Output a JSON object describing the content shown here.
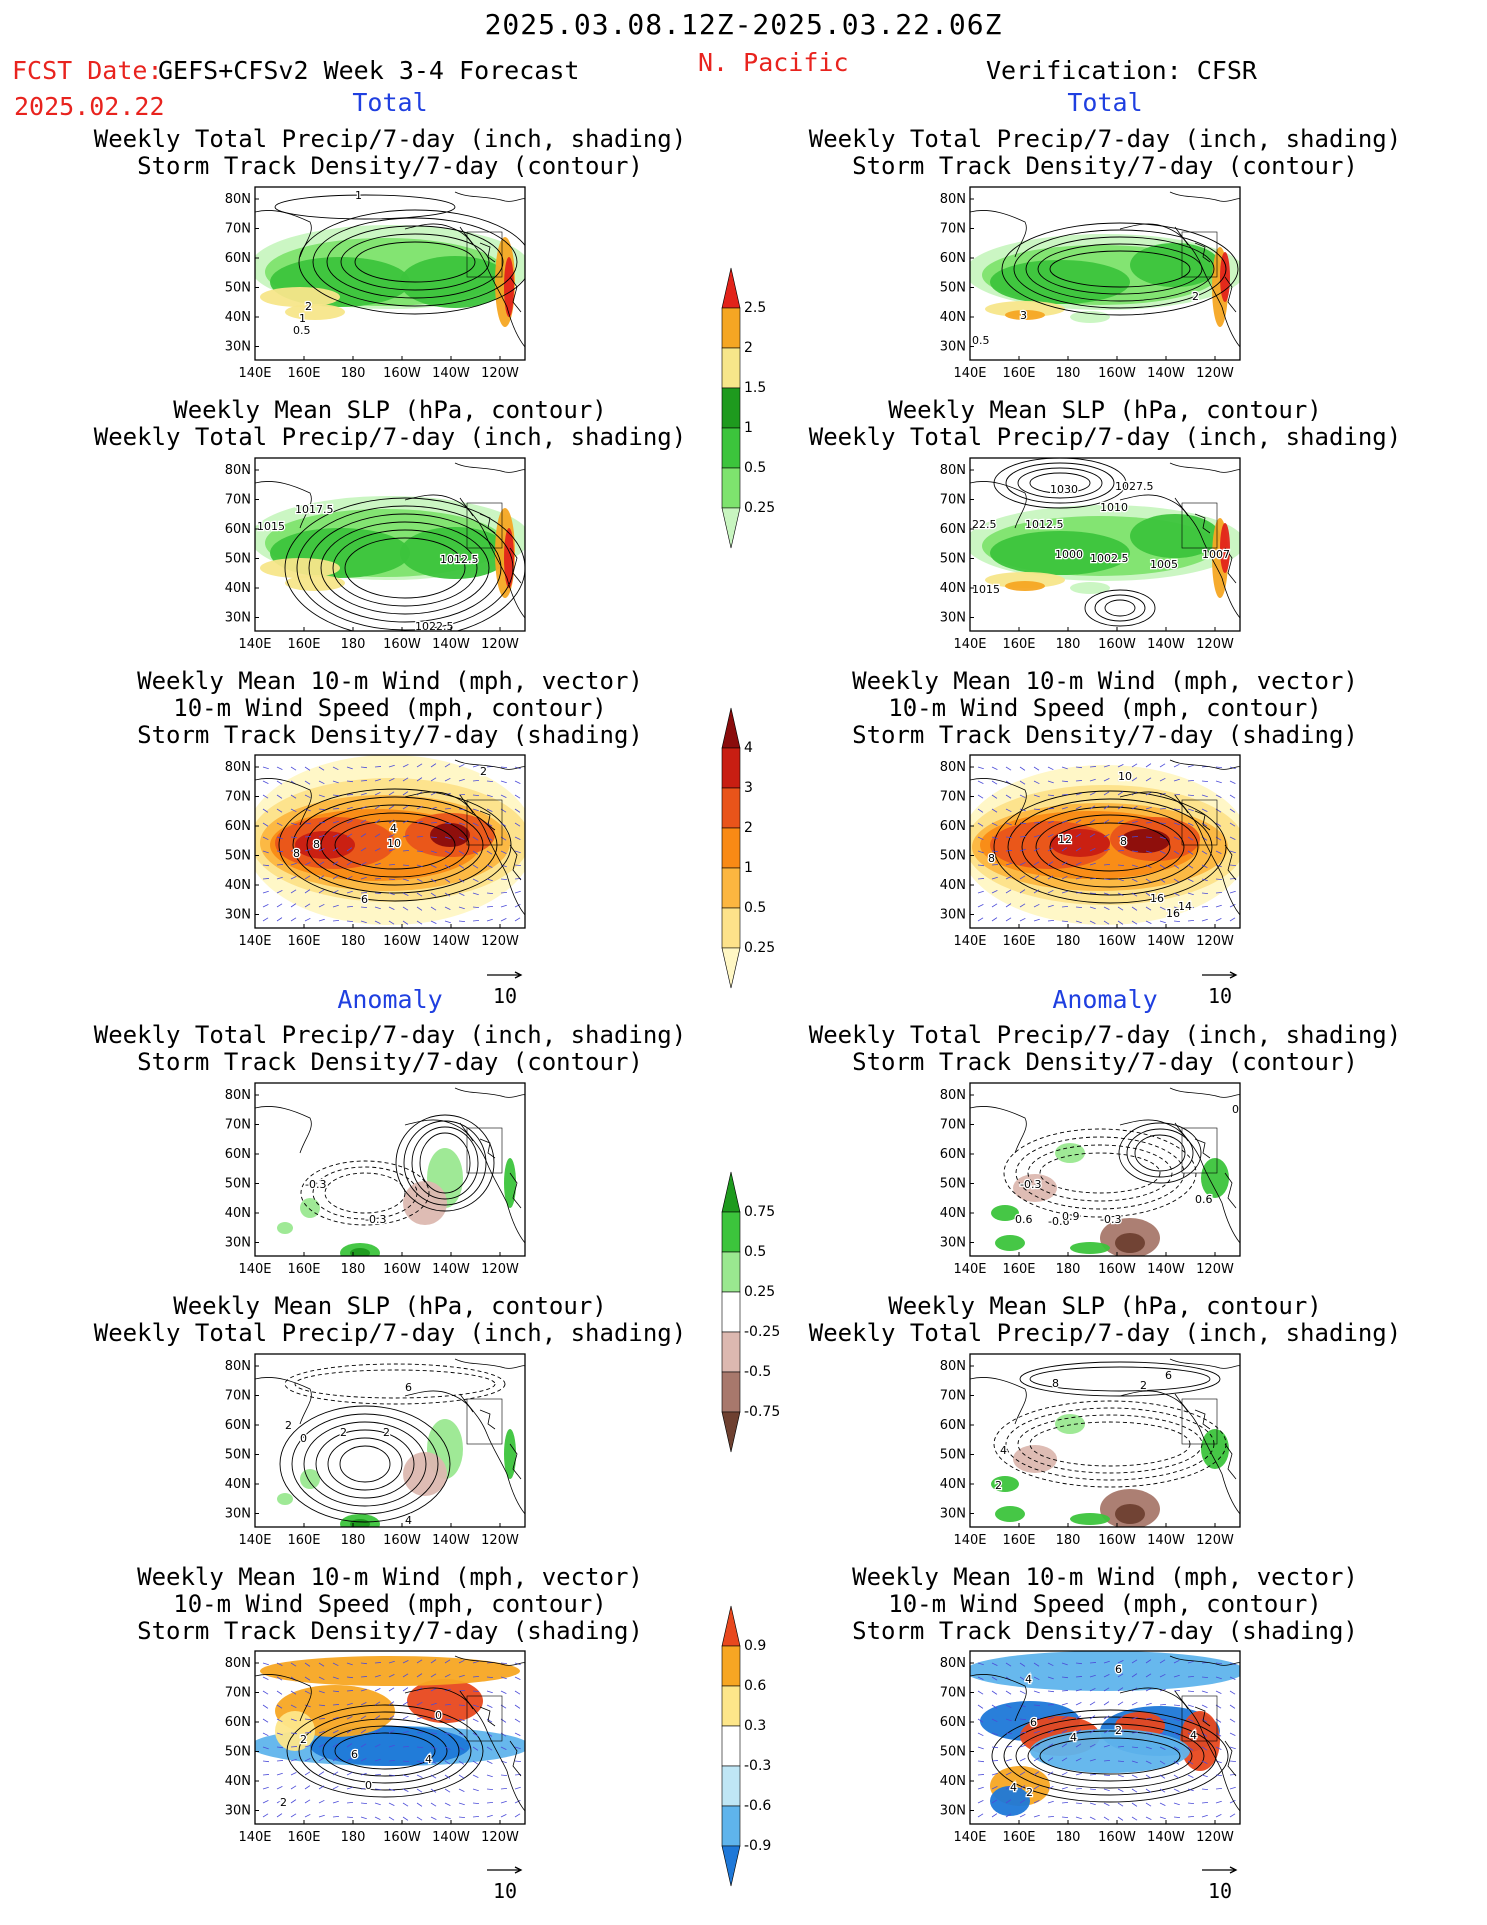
{
  "header": {
    "date_range": "2025.03.08.12Z-2025.03.22.06Z",
    "fcst_label": "FCST Date:",
    "forecast_product": "GEFS+CFSv2 Week 3-4 Forecast",
    "fcst_date": "2025.02.22",
    "region": "N. Pacific",
    "verification": "Verification: CFSR"
  },
  "sections": {
    "total": "Total",
    "anomaly": "Anomaly"
  },
  "titles": {
    "precip_storm": [
      "Weekly Total Precip/7-day (inch, shading)",
      "Storm Track Density/7-day (contour)"
    ],
    "slp_precip": [
      "Weekly Mean SLP (hPa, contour)",
      "Weekly Total Precip/7-day (inch, shading)"
    ],
    "wind_storm": [
      "Weekly Mean 10-m Wind (mph, vector)",
      "10-m Wind Speed (mph, contour)",
      "Storm Track Density/7-day (shading)"
    ]
  },
  "axes": {
    "lat_labels": [
      "80N",
      "70N",
      "60N",
      "50N",
      "40N",
      "30N"
    ],
    "lon_labels": [
      "140E",
      "160E",
      "180",
      "160W",
      "140W",
      "120W"
    ]
  },
  "vector_reference": "10",
  "colorbars": {
    "precip_total": {
      "levels": [
        "0.25",
        "0.5",
        "1",
        "1.5",
        "2",
        "2.5"
      ],
      "colors": [
        "#c8f5c0",
        "#7ee36e",
        "#3cc43c",
        "#1e9a1e",
        "#f7e68a",
        "#f5a623",
        "#e2231a"
      ]
    },
    "storm_total": {
      "levels": [
        "0.25",
        "0.5",
        "1",
        "2",
        "3",
        "4"
      ],
      "colors": [
        "#fff7c4",
        "#fde28a",
        "#fcb640",
        "#f98a15",
        "#e9541a",
        "#c81e12",
        "#8a0c0c"
      ]
    },
    "precip_anom": {
      "levels": [
        "0.75",
        "0.5",
        "0.25",
        "-0.25",
        "-0.5",
        "-0.75"
      ],
      "colors": [
        "#1e9a1e",
        "#3cc43c",
        "#9ae890",
        "#ffffff",
        "#dcb8b0",
        "#a8786c",
        "#6e4030"
      ]
    },
    "storm_anom": {
      "levels": [
        "0.9",
        "0.6",
        "0.3",
        "-0.3",
        "-0.6",
        "-0.9"
      ],
      "colors": [
        "#e8481e",
        "#f7a623",
        "#fde68a",
        "#ffffff",
        "#bfe6f5",
        "#5fb4ec",
        "#1e78d8"
      ]
    }
  },
  "panel_labels": {
    "fcst_precip_total": [
      "1",
      "2",
      "1",
      "0.5"
    ],
    "cfsr_precip_total": [
      "2",
      "3",
      "0.5"
    ],
    "fcst_slp_total": [
      "1017.5",
      "1015",
      "1012.5",
      "1022.5"
    ],
    "cfsr_slp_total": [
      "1030",
      "1027.5",
      "1010",
      "1012.5",
      "22.5",
      "1000",
      "1002.5",
      "1005",
      "1007",
      "1015"
    ],
    "fcst_wind_total": [
      "2",
      "4",
      "8",
      "8",
      "10",
      "6"
    ],
    "cfsr_wind_total": [
      "10",
      "12",
      "8",
      "8",
      "16",
      "14",
      "16"
    ],
    "fcst_precip_anom": [
      "-0.3",
      "-0.3"
    ],
    "cfsr_precip_anom": [
      "0",
      "-0.3",
      "0.6",
      "-0.6",
      "0.9",
      "-0.3",
      "0.6"
    ],
    "fcst_slp_anom": [
      "6",
      "2",
      "0",
      "2",
      "2",
      "4"
    ],
    "cfsr_slp_anom": [
      "8",
      "6",
      "2",
      "4",
      "2"
    ],
    "fcst_wind_anom": [
      "2",
      "0",
      "6",
      "4",
      "2",
      "0"
    ],
    "cfsr_wind_anom": [
      "6",
      "4",
      "6",
      "4",
      "2",
      "4",
      "2",
      "4"
    ]
  }
}
